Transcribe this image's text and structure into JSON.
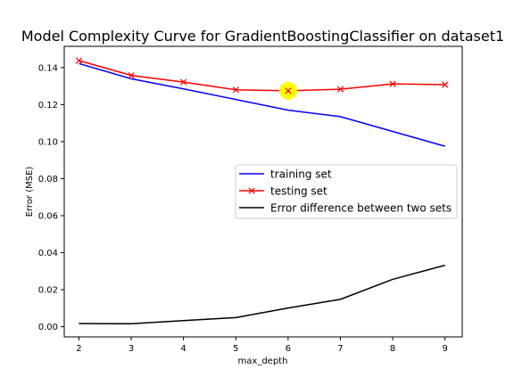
{
  "chart_data": {
    "type": "line",
    "title": "Model Complexity Curve for GradientBoostingClassifier on dataset1",
    "xlabel": "max_depth",
    "ylabel": "Error (MSE)",
    "x": [
      2,
      3,
      4,
      5,
      6,
      7,
      8,
      9
    ],
    "xlim": [
      1.72,
      9.33
    ],
    "ylim": [
      -0.0055,
      0.1515
    ],
    "xticks": [
      "2",
      "3",
      "4",
      "5",
      "6",
      "7",
      "8",
      "9"
    ],
    "yticks": [
      "0.00",
      "0.02",
      "0.04",
      "0.06",
      "0.08",
      "0.10",
      "0.12",
      "0.14"
    ],
    "ytick_values": [
      0,
      0.02,
      0.04,
      0.06,
      0.08,
      0.1,
      0.12,
      0.14
    ],
    "grid": false,
    "legend_position": "center-right",
    "series": [
      {
        "name": "training set",
        "color": "#0000ff",
        "marker": "none",
        "values": [
          0.1422,
          0.134,
          0.1285,
          0.1228,
          0.117,
          0.1135,
          0.1055,
          0.0975
        ]
      },
      {
        "name": "testing set",
        "color": "#ff0000",
        "marker": "x",
        "values": [
          0.1438,
          0.1358,
          0.1322,
          0.128,
          0.1275,
          0.1283,
          0.1312,
          0.1308
        ]
      },
      {
        "name": "Error difference between two sets",
        "color": "#000000",
        "marker": "none",
        "values": [
          0.0017,
          0.0016,
          0.0033,
          0.0049,
          0.0101,
          0.0148,
          0.0256,
          0.0332
        ]
      }
    ],
    "highlight": {
      "x": 6,
      "y": 0.1275,
      "color": "#ffff00"
    }
  }
}
